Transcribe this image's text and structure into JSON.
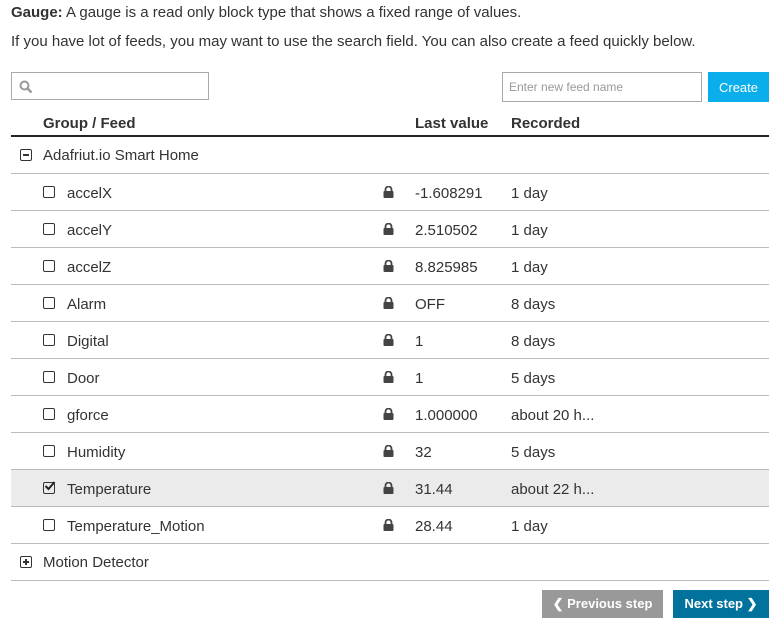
{
  "intro": {
    "gauge_label": "Gauge:",
    "gauge_text": " A gauge is a read only block type that shows a fixed range of values.",
    "hint": "If you have lot of feeds, you may want to use the search field. You can also create a feed quickly below."
  },
  "search": {
    "placeholder": "",
    "icon": "search-icon"
  },
  "new_feed": {
    "placeholder": "Enter new feed name",
    "create_label": "Create"
  },
  "table": {
    "headers": {
      "name": "Group / Feed",
      "last_value": "Last value",
      "recorded": "Recorded"
    },
    "groups": [
      {
        "name": "Adafriut.io Smart Home",
        "expanded": true
      },
      {
        "name": "Motion Detector",
        "expanded": false
      }
    ],
    "feeds": [
      {
        "name": "accelX",
        "value": "-1.608291",
        "recorded": "1 day",
        "checked": false
      },
      {
        "name": "accelY",
        "value": "2.510502",
        "recorded": "1 day",
        "checked": false
      },
      {
        "name": "accelZ",
        "value": "8.825985",
        "recorded": "1 day",
        "checked": false
      },
      {
        "name": "Alarm",
        "value": "OFF",
        "recorded": "8 days",
        "checked": false
      },
      {
        "name": "Digital",
        "value": "1",
        "recorded": "8 days",
        "checked": false
      },
      {
        "name": "Door",
        "value": "1",
        "recorded": "5 days",
        "checked": false
      },
      {
        "name": "gforce",
        "value": "1.000000",
        "recorded": "about 20 h...",
        "checked": false
      },
      {
        "name": "Humidity",
        "value": "32",
        "recorded": "5 days",
        "checked": false
      },
      {
        "name": "Temperature",
        "value": "31.44",
        "recorded": "about 22 h...",
        "checked": true
      },
      {
        "name": "Temperature_Motion",
        "value": "28.44",
        "recorded": "1 day",
        "checked": false
      }
    ]
  },
  "nav": {
    "prev_label": "Previous step",
    "next_label": "Next step"
  },
  "colors": {
    "create": "#0aaeea",
    "next": "#00729c",
    "prev": "#999999",
    "selected_row": "#ebebeb"
  }
}
